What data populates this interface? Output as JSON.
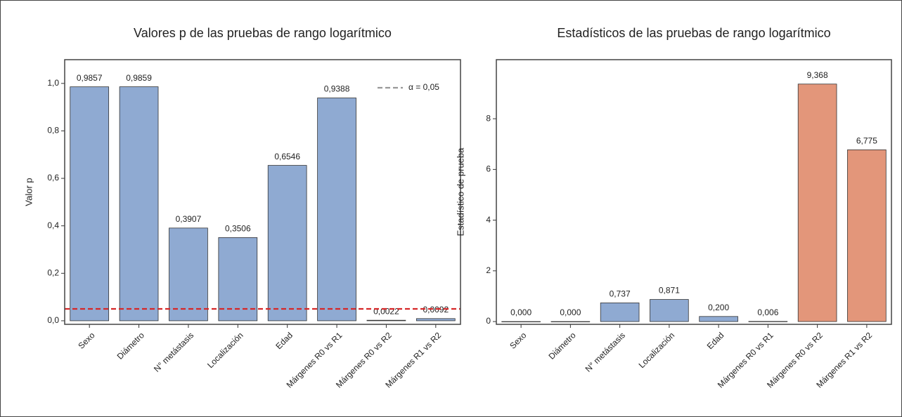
{
  "chart_data": [
    {
      "type": "bar",
      "title": "Valores p de las pruebas de rango logarítmico",
      "ylabel": "Valor p",
      "categories": [
        "Sexo",
        "Diámetro",
        "N° metástasis",
        "Localización",
        "Edad",
        "Márgenes R0 vs R1",
        "Márgenes R0 vs R2",
        "Márgenes R1 vs R2"
      ],
      "values": [
        0.9857,
        0.9859,
        0.3907,
        0.3506,
        0.6546,
        0.9388,
        0.0022,
        0.0092
      ],
      "value_labels": [
        "0,9857",
        "0,9859",
        "0,3907",
        "0,3506",
        "0,6546",
        "0,9388",
        "0,0022",
        "0,0092"
      ],
      "color": "#8faad2",
      "ylim": [
        -0.015,
        1.1
      ],
      "yticks": [
        {
          "value": 0,
          "label": "0,0"
        },
        {
          "value": 0.2,
          "label": "0,2"
        },
        {
          "value": 0.4,
          "label": "0,4"
        },
        {
          "value": 0.6,
          "label": "0,6"
        },
        {
          "value": 0.8,
          "label": "0,8"
        },
        {
          "value": 1,
          "label": "1,0"
        }
      ],
      "threshold": {
        "value": 0.05,
        "label": "α = 0,05",
        "color": "#d62728",
        "legend_color": "#999999"
      },
      "legend": "upper right"
    },
    {
      "type": "bar",
      "title": "Estadísticos de las pruebas de rango logarítmico",
      "ylabel": "Estadístico de prueba",
      "categories": [
        "Sexo",
        "Diámetro",
        "N° metástasis",
        "Localización",
        "Edad",
        "Márgenes R0 vs R1",
        "Márgenes R0 vs R2",
        "Márgenes R1 vs R2"
      ],
      "values": [
        0,
        0,
        0.737,
        0.871,
        0.2,
        0.006,
        9.368,
        6.775
      ],
      "value_labels": [
        "0,000",
        "0,000",
        "0,737",
        "0,871",
        "0,200",
        "0,006",
        "9,368",
        "6,775"
      ],
      "colors": [
        "#8faad2",
        "#8faad2",
        "#8faad2",
        "#8faad2",
        "#8faad2",
        "#8faad2",
        "#e3967a",
        "#e3967a"
      ],
      "ylim": [
        -0.11,
        10.33
      ],
      "yticks": [
        0,
        2,
        4,
        6,
        8
      ]
    }
  ]
}
